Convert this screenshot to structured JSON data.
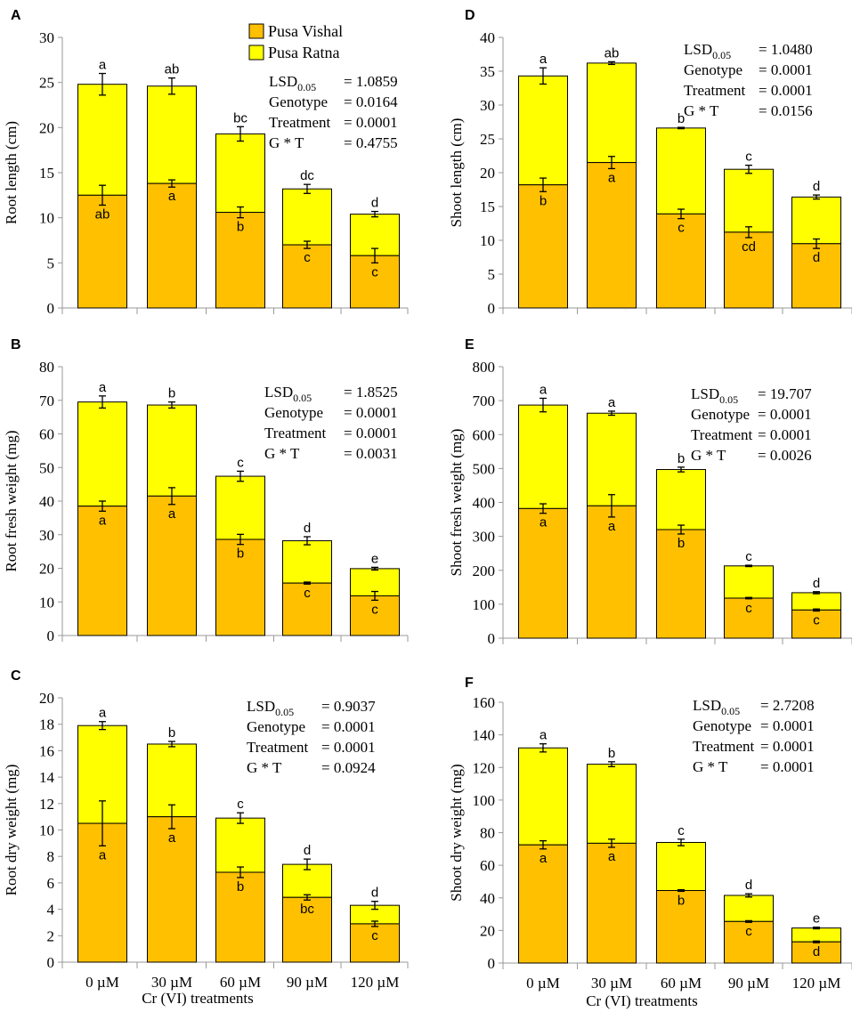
{
  "figure": {
    "categories": [
      "0 µM",
      "30 µM",
      "60 µM",
      "90 µM",
      "120 µM"
    ],
    "xlabel": "Cr (VI) treatments",
    "legend": [
      {
        "name": "Pusa Vishal",
        "color": "#FFC000"
      },
      {
        "name": "Pusa Ratna",
        "color": "#FFFF00"
      }
    ],
    "bar_outline": "#000000"
  },
  "chart_data": [
    {
      "panel": "A",
      "type": "bar",
      "stacked": true,
      "categories": [
        "0 µM",
        "30 µM",
        "60 µM",
        "90 µM",
        "120 µM"
      ],
      "ylabel": "Root length (cm)",
      "ylim": [
        0,
        30
      ],
      "yticks": [
        0,
        5,
        10,
        15,
        20,
        25,
        30
      ],
      "series": [
        {
          "name": "Pusa Vishal",
          "values": [
            12.5,
            13.8,
            10.6,
            7.0,
            5.8
          ],
          "errors": [
            1.1,
            0.4,
            0.6,
            0.4,
            0.8
          ],
          "letters": [
            "ab",
            "a",
            "b",
            "c",
            "c"
          ]
        },
        {
          "name": "Pusa Ratna",
          "totals": [
            24.8,
            24.6,
            19.3,
            13.2,
            10.4
          ],
          "errors": [
            1.2,
            0.9,
            0.8,
            0.5,
            0.3
          ],
          "letters": [
            "a",
            "ab",
            "bc",
            "dc",
            "d"
          ]
        }
      ],
      "stats": [
        {
          "label": "LSD",
          "sub": "0.05",
          "value": "= 1.0859"
        },
        {
          "label": "Genotype",
          "value": "= 0.0164"
        },
        {
          "label": "Treatment",
          "value": "= 0.0001"
        },
        {
          "label": "G * T",
          "value": "= 0.4755"
        }
      ]
    },
    {
      "panel": "B",
      "type": "bar",
      "stacked": true,
      "categories": [
        "0 µM",
        "30 µM",
        "60 µM",
        "90 µM",
        "120 µM"
      ],
      "ylabel": "Root fresh weight (mg)",
      "ylim": [
        0,
        80
      ],
      "yticks": [
        0,
        10,
        20,
        30,
        40,
        50,
        60,
        70,
        80
      ],
      "series": [
        {
          "name": "Pusa Vishal",
          "values": [
            38.5,
            41.5,
            28.6,
            15.6,
            11.8
          ],
          "errors": [
            1.5,
            2.5,
            1.5,
            0.3,
            1.3
          ],
          "letters": [
            "a",
            "a",
            "b",
            "c",
            "c"
          ]
        },
        {
          "name": "Pusa Ratna",
          "totals": [
            69.5,
            68.6,
            47.4,
            28.2,
            19.9
          ],
          "errors": [
            1.8,
            0.9,
            1.5,
            1.2,
            0.4
          ],
          "letters": [
            "a",
            "b",
            "c",
            "d",
            "e"
          ]
        }
      ],
      "stats": [
        {
          "label": "LSD",
          "sub": "0.05",
          "value": "= 1.8525"
        },
        {
          "label": "Genotype",
          "value": "= 0.0001"
        },
        {
          "label": "Treatment",
          "value": "= 0.0001"
        },
        {
          "label": "G * T",
          "value": "= 0.0031"
        }
      ]
    },
    {
      "panel": "C",
      "type": "bar",
      "stacked": true,
      "categories": [
        "0 µM",
        "30 µM",
        "60 µM",
        "90 µM",
        "120 µM"
      ],
      "ylabel": "Root dry weight (mg)",
      "ylim": [
        0,
        20
      ],
      "yticks": [
        0,
        2,
        4,
        6,
        8,
        10,
        12,
        14,
        16,
        18,
        20
      ],
      "series": [
        {
          "name": "Pusa Vishal",
          "values": [
            10.5,
            11.0,
            6.8,
            4.9,
            2.9
          ],
          "errors": [
            1.7,
            0.9,
            0.4,
            0.2,
            0.2
          ],
          "letters": [
            "a",
            "a",
            "b",
            "bc",
            "c"
          ]
        },
        {
          "name": "Pusa Ratna",
          "totals": [
            17.9,
            16.5,
            10.9,
            7.4,
            4.3
          ],
          "errors": [
            0.3,
            0.2,
            0.4,
            0.4,
            0.3
          ],
          "letters": [
            "a",
            "b",
            "c",
            "d",
            "d"
          ]
        }
      ],
      "stats": [
        {
          "label": "LSD",
          "sub": "0.05",
          "value": "= 0.9037"
        },
        {
          "label": "Genotype",
          "value": "= 0.0001"
        },
        {
          "label": "Treatment",
          "value": "= 0.0001"
        },
        {
          "label": "G * T",
          "value": "= 0.0924"
        }
      ]
    },
    {
      "panel": "D",
      "type": "bar",
      "stacked": true,
      "categories": [
        "0 µM",
        "30 µM",
        "60 µM",
        "90 µM",
        "120 µM"
      ],
      "ylabel": "Shoot length (cm)",
      "ylim": [
        0,
        40
      ],
      "yticks": [
        0,
        5,
        10,
        15,
        20,
        25,
        30,
        35,
        40
      ],
      "series": [
        {
          "name": "Pusa Vishal",
          "values": [
            18.2,
            21.5,
            13.9,
            11.2,
            9.5
          ],
          "errors": [
            1.0,
            0.9,
            0.7,
            0.8,
            0.7
          ],
          "letters": [
            "b",
            "a",
            "c",
            "cd",
            "d"
          ]
        },
        {
          "name": "Pusa Ratna",
          "totals": [
            34.3,
            36.2,
            26.6,
            20.5,
            16.4
          ],
          "errors": [
            1.2,
            0.2,
            0.1,
            0.6,
            0.3
          ],
          "letters": [
            "a",
            "ab",
            "b",
            "c",
            "d"
          ]
        }
      ],
      "stats": [
        {
          "label": "LSD",
          "sub": "0.05",
          "value": "= 1.0480"
        },
        {
          "label": "Genotype",
          "value": "= 0.0001"
        },
        {
          "label": "Treatment",
          "value": "= 0.0001"
        },
        {
          "label": "G * T",
          "value": "= 0.0156"
        }
      ]
    },
    {
      "panel": "E",
      "type": "bar",
      "stacked": true,
      "categories": [
        "0 µM",
        "30 µM",
        "60 µM",
        "90 µM",
        "120 µM"
      ],
      "ylabel": "Shoot fresh weight (mg)",
      "ylim": [
        0,
        800
      ],
      "yticks": [
        0,
        100,
        200,
        300,
        400,
        500,
        600,
        700,
        800
      ],
      "series": [
        {
          "name": "Pusa Vishal",
          "values": [
            382,
            390,
            320,
            118,
            83
          ],
          "errors": [
            14,
            33,
            13,
            2,
            3
          ],
          "letters": [
            "a",
            "a",
            "b",
            "c",
            "c"
          ]
        },
        {
          "name": "Pusa Ratna",
          "totals": [
            687,
            663,
            497,
            213,
            134
          ],
          "errors": [
            20,
            6,
            7,
            2,
            3
          ],
          "letters": [
            "a",
            "a",
            "b",
            "c",
            "d"
          ]
        }
      ],
      "stats": [
        {
          "label": "LSD",
          "sub": "0.05",
          "value": "= 19.707"
        },
        {
          "label": "Genotype",
          "value": "= 0.0001"
        },
        {
          "label": "Treatment",
          "value": "= 0.0001"
        },
        {
          "label": "G * T",
          "value": "= 0.0026"
        }
      ]
    },
    {
      "panel": "F",
      "type": "bar",
      "stacked": true,
      "categories": [
        "0 µM",
        "30 µM",
        "60 µM",
        "90 µM",
        "120 µM"
      ],
      "ylabel": "Shoot dry weight (mg)",
      "ylim": [
        0,
        160
      ],
      "yticks": [
        0,
        20,
        40,
        60,
        80,
        100,
        120,
        140,
        160
      ],
      "series": [
        {
          "name": "Pusa Vishal",
          "values": [
            72.5,
            73.5,
            44.5,
            25.5,
            13.0
          ],
          "errors": [
            2.5,
            2.5,
            0.5,
            0.5,
            0.5
          ],
          "letters": [
            "a",
            "a",
            "b",
            "c",
            "d"
          ]
        },
        {
          "name": "Pusa Ratna",
          "totals": [
            132,
            122,
            74,
            41.5,
            21.5
          ],
          "errors": [
            2.5,
            1.5,
            2.0,
            1.0,
            0.5
          ],
          "letters": [
            "a",
            "b",
            "c",
            "d",
            "e"
          ]
        }
      ],
      "stats": [
        {
          "label": "LSD",
          "sub": "0.05",
          "value": "= 2.7208"
        },
        {
          "label": "Genotype",
          "value": "= 0.0001"
        },
        {
          "label": "Treatment",
          "value": "= 0.0001"
        },
        {
          "label": "G * T",
          "value": "= 0.0001"
        }
      ]
    }
  ]
}
